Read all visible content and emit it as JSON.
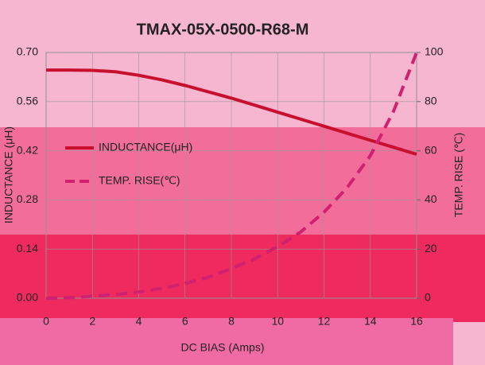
{
  "chart_data": {
    "type": "line",
    "title": "TMAX-05X-0500-R68-M",
    "x_label": "DC BIAS (Amps)",
    "y_label": "INDUCTANCE (μH)",
    "y2_label": "TEMP. RISE (℃)",
    "x": [
      0,
      1,
      2,
      3,
      4,
      5,
      6,
      7,
      8,
      9,
      10,
      11,
      12,
      13,
      14,
      15,
      16
    ],
    "series": [
      {
        "name": "INDUCTANCE(μH)",
        "color": "#c8102e",
        "dash": false,
        "values": [
          0.65,
          0.65,
          0.649,
          0.645,
          0.635,
          0.622,
          0.606,
          0.588,
          0.57,
          0.55,
          0.53,
          0.51,
          0.49,
          0.47,
          0.45,
          0.43,
          0.41
        ]
      },
      {
        "name": "TEMP. RISE(℃)",
        "color": "#d02070",
        "dash": true,
        "axis": "y2",
        "values": [
          0,
          0.2,
          0.8,
          1.5,
          2.5,
          4,
          6,
          8.5,
          12,
          16,
          21,
          27,
          35,
          45,
          58,
          76,
          100
        ]
      }
    ],
    "xlim": [
      0,
      16
    ],
    "xticks": [
      0,
      2,
      4,
      6,
      8,
      10,
      12,
      14,
      16
    ],
    "ylim": [
      0,
      0.7
    ],
    "yticks": [
      {
        "value": 0,
        "label": "0.00"
      },
      0.14,
      0.28,
      0.42,
      0.56,
      {
        "value": 0.7,
        "label": "0.70"
      }
    ],
    "y2lim": [
      0,
      100
    ],
    "y2ticks": [
      0,
      20,
      40,
      60,
      80,
      100
    ],
    "grid": true,
    "legend": "left"
  }
}
